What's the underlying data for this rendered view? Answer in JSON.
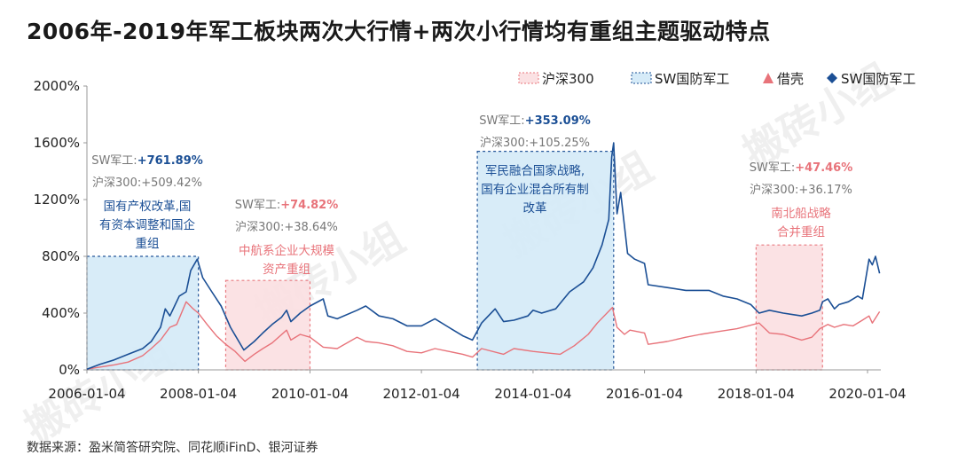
{
  "title": "2006年-2019年军工板块两次大行情+两次小行情均有重组主题驱动特点",
  "source": "数据来源：盈米简答研究院、同花顺iFinD、银河证券",
  "watermark": "搬砖小组",
  "colors": {
    "hs300": "#e8737a",
    "sw": "#1b4f95",
    "blue_fill": "#d6ebf8",
    "pink_fill": "#fbe1e3",
    "grey_text": "#777777"
  },
  "chart_data": {
    "type": "line",
    "title": "2006年-2019年军工板块两次大行情+两次小行情均有重组主题驱动特点",
    "x_type": "date",
    "xlim": [
      "2006-01-04",
      "2020-03-31"
    ],
    "ylim": [
      0,
      2000
    ],
    "y_ticks": [
      0,
      400,
      800,
      1200,
      1600,
      2000
    ],
    "y_tick_labels": [
      "0%",
      "400%",
      "800%",
      "1200%",
      "1600%",
      "2000%"
    ],
    "x_ticks": [
      "2006-01-04",
      "2008-01-04",
      "2010-01-04",
      "2012-01-04",
      "2014-01-04",
      "2016-01-04",
      "2018-01-04",
      "2020-01-04"
    ],
    "x_tick_labels": [
      "2006-01-04",
      "2008-01-04",
      "2010-01-04",
      "2012-01-04",
      "2014-01-04",
      "2016-01-04",
      "2018-01-04",
      "2020-01-04"
    ],
    "grid": false,
    "legend": {
      "placement": "top-right",
      "entries": [
        {
          "label": "沪深300",
          "symbol": "dashed-box",
          "color": "#e8737a"
        },
        {
          "label": "SW国防军工",
          "symbol": "dashed-box",
          "color": "#1b4f95"
        },
        {
          "label": "借壳",
          "symbol": "triangle",
          "color": "#e8737a"
        },
        {
          "label": "SW国防军工",
          "symbol": "diamond",
          "color": "#1b4f95"
        }
      ]
    },
    "series": [
      {
        "name": "沪深300",
        "color": "#e8737a",
        "x": [
          "2006-01-04",
          "2006-04-01",
          "2006-07-01",
          "2006-10-01",
          "2007-01-04",
          "2007-03-01",
          "2007-05-01",
          "2007-07-01",
          "2007-08-15",
          "2007-10-16",
          "2007-12-01",
          "2008-01-04",
          "2008-03-01",
          "2008-05-01",
          "2008-07-01",
          "2008-09-01",
          "2008-11-04",
          "2009-01-04",
          "2009-03-01",
          "2009-05-01",
          "2009-08-04",
          "2009-09-01",
          "2009-11-01",
          "2010-01-04",
          "2010-04-01",
          "2010-07-01",
          "2010-11-08",
          "2011-01-04",
          "2011-04-01",
          "2011-07-01",
          "2011-10-01",
          "2012-01-04",
          "2012-04-01",
          "2012-07-01",
          "2012-10-01",
          "2012-12-03",
          "2013-02-01",
          "2013-06-25",
          "2013-09-01",
          "2014-01-04",
          "2014-04-01",
          "2014-07-01",
          "2014-10-01",
          "2014-12-31",
          "2015-03-01",
          "2015-06-08",
          "2015-07-08",
          "2015-08-26",
          "2015-10-01",
          "2016-01-04",
          "2016-01-28",
          "2016-06-01",
          "2016-10-01",
          "2017-01-04",
          "2017-05-01",
          "2017-09-01",
          "2018-01-24",
          "2018-04-01",
          "2018-07-01",
          "2018-10-30",
          "2019-01-04",
          "2019-02-25",
          "2019-04-19",
          "2019-06-01",
          "2019-08-01",
          "2019-10-01",
          "2019-12-01",
          "2020-01-14",
          "2020-02-04",
          "2020-03-23"
        ],
        "values": [
          5,
          20,
          35,
          55,
          100,
          150,
          210,
          300,
          320,
          480,
          430,
          400,
          320,
          240,
          180,
          130,
          60,
          110,
          150,
          190,
          280,
          210,
          250,
          230,
          160,
          150,
          230,
          200,
          190,
          170,
          130,
          120,
          150,
          130,
          110,
          90,
          150,
          110,
          150,
          130,
          120,
          110,
          170,
          250,
          330,
          440,
          300,
          250,
          280,
          260,
          180,
          200,
          230,
          250,
          270,
          290,
          330,
          260,
          250,
          210,
          230,
          290,
          320,
          300,
          320,
          310,
          350,
          380,
          330,
          410
        ]
      },
      {
        "name": "SW国防军工",
        "color": "#1b4f95",
        "x": [
          "2006-01-04",
          "2006-04-01",
          "2006-07-01",
          "2006-10-01",
          "2007-01-04",
          "2007-03-01",
          "2007-05-01",
          "2007-06-01",
          "2007-07-01",
          "2007-08-01",
          "2007-09-01",
          "2007-10-16",
          "2007-11-15",
          "2007-12-28",
          "2008-02-01",
          "2008-04-01",
          "2008-06-01",
          "2008-08-01",
          "2008-10-28",
          "2009-01-04",
          "2009-03-01",
          "2009-05-01",
          "2009-07-01",
          "2009-08-04",
          "2009-09-01",
          "2009-11-01",
          "2010-01-04",
          "2010-04-01",
          "2010-05-01",
          "2010-07-01",
          "2010-11-08",
          "2011-01-04",
          "2011-04-01",
          "2011-07-01",
          "2011-10-01",
          "2012-01-04",
          "2012-04-01",
          "2012-07-01",
          "2012-10-01",
          "2012-12-03",
          "2013-02-01",
          "2013-05-01",
          "2013-06-25",
          "2013-09-01",
          "2013-12-01",
          "2014-01-04",
          "2014-03-01",
          "2014-06-01",
          "2014-09-01",
          "2014-12-01",
          "2015-02-01",
          "2015-04-01",
          "2015-05-15",
          "2015-06-03",
          "2015-06-16",
          "2015-07-08",
          "2015-08-01",
          "2015-09-15",
          "2015-11-01",
          "2016-01-04",
          "2016-01-28",
          "2016-06-01",
          "2016-10-01",
          "2017-01-04",
          "2017-03-01",
          "2017-06-01",
          "2017-09-01",
          "2017-12-01",
          "2018-01-24",
          "2018-04-01",
          "2018-07-01",
          "2018-10-30",
          "2019-01-04",
          "2019-02-25",
          "2019-03-15",
          "2019-04-19",
          "2019-06-01",
          "2019-07-01",
          "2019-09-01",
          "2019-11-01",
          "2019-12-01",
          "2020-01-14",
          "2020-02-04",
          "2020-02-25",
          "2020-03-23"
        ],
        "values": [
          5,
          40,
          70,
          110,
          150,
          200,
          300,
          430,
          380,
          450,
          520,
          550,
          700,
          780,
          650,
          550,
          450,
          300,
          140,
          200,
          260,
          320,
          370,
          420,
          340,
          400,
          450,
          500,
          380,
          360,
          420,
          450,
          380,
          360,
          310,
          310,
          360,
          300,
          240,
          210,
          330,
          430,
          340,
          350,
          380,
          420,
          400,
          430,
          550,
          620,
          720,
          880,
          1060,
          1500,
          1600,
          1100,
          1250,
          820,
          780,
          750,
          600,
          580,
          560,
          560,
          560,
          520,
          500,
          460,
          400,
          420,
          400,
          380,
          400,
          420,
          480,
          500,
          430,
          460,
          480,
          520,
          500,
          780,
          740,
          800,
          680
        ]
      }
    ],
    "annotations": [
      {
        "label_box": [
          "国有产权改革,国",
          "有资本调整和国企",
          "重组"
        ],
        "sw_label": "SW军工:",
        "sw_value": "+761.89%",
        "hs_label": "沪深300:",
        "hs_value": "+509.42%",
        "period": [
          "2006-01-04",
          "2008-01-04"
        ],
        "box_top": 800,
        "style": "blue"
      },
      {
        "label_box": [
          "中航系企业大规模",
          "资产重组"
        ],
        "sw_label": "SW军工:",
        "sw_value": "+74.82%",
        "hs_label": "沪深300:",
        "hs_value": "+38.64%",
        "period": [
          "2008-07-01",
          "2010-01-04"
        ],
        "box_top": 630,
        "style": "pink"
      },
      {
        "label_box": [
          "军民融合国家战略,",
          "国有企业混合所有制",
          "改革"
        ],
        "sw_label": "SW军工:",
        "sw_value": "+353.09%",
        "hs_label": "沪深300:",
        "hs_value": "+105.25%",
        "period": [
          "2013-01-04",
          "2015-06-16"
        ],
        "box_top": 1540,
        "style": "blue"
      },
      {
        "label_box": [
          "南北船战略",
          "合并重组"
        ],
        "sw_label": "SW军工:",
        "sw_value": "+47.46%",
        "hs_label": "沪深300:",
        "hs_value": "+36.17%",
        "period": [
          "2018-01-04",
          "2019-03-15"
        ],
        "box_top": 880,
        "style": "pink"
      }
    ]
  }
}
